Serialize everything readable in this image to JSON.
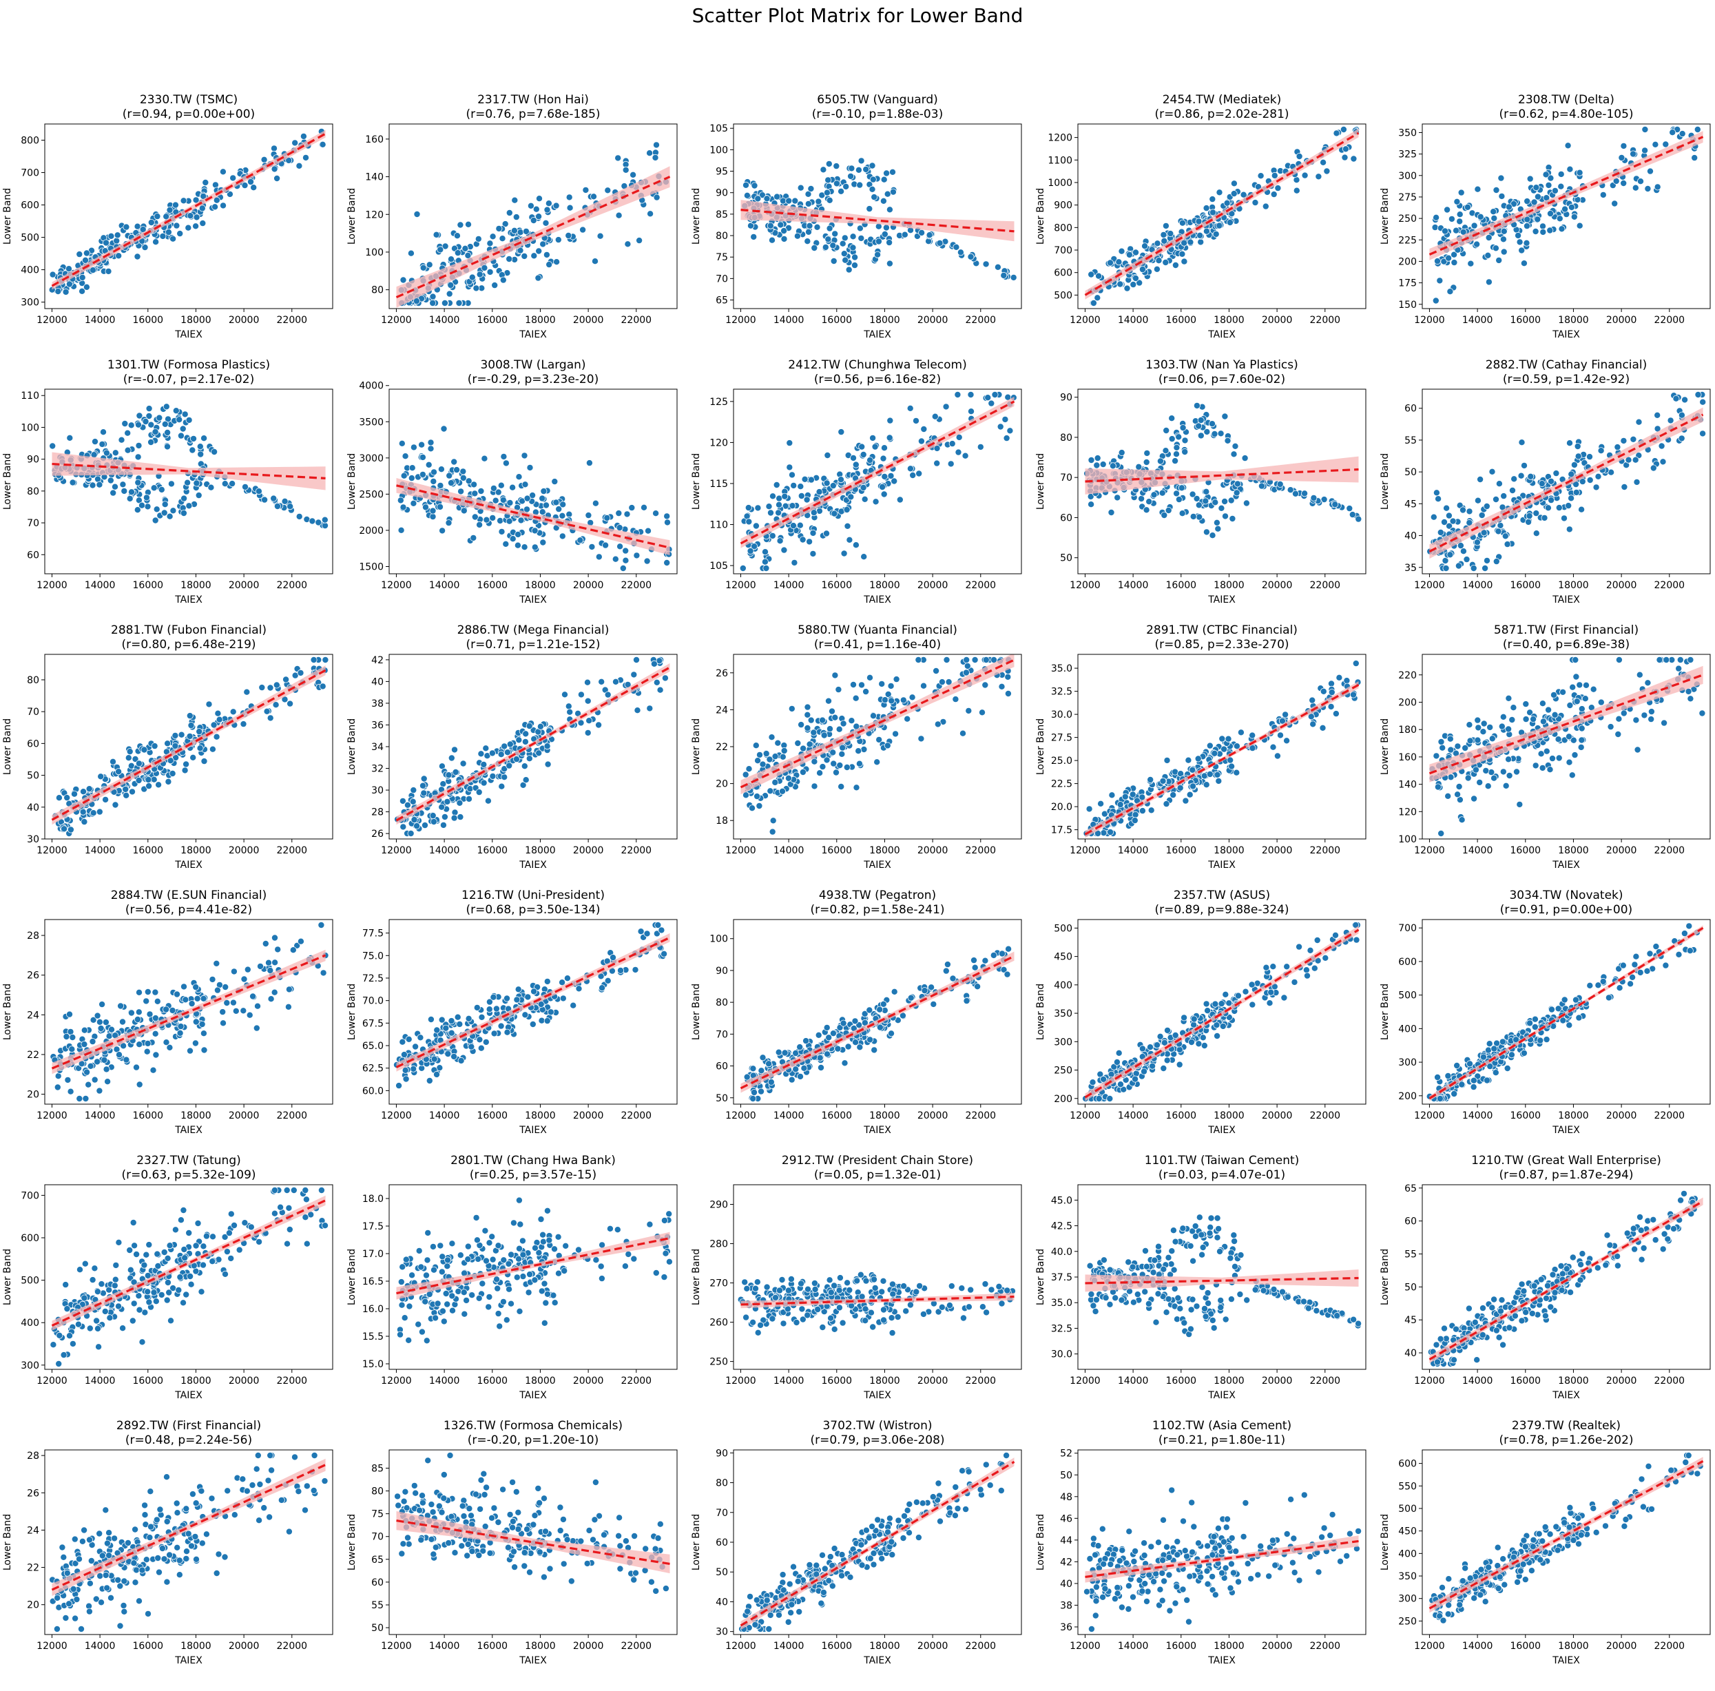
{
  "figure": {
    "title": "Scatter Plot Matrix for Lower Band"
  },
  "chart_data": [
    {
      "type": "scatter",
      "name": "2330.TW (TSMC)",
      "stats": "(r=0.94, p=0.00e+00)",
      "xlabel": "TAIEX",
      "ylabel": "Lower Band",
      "xlim": [
        11700,
        23700
      ],
      "ylim": [
        280,
        850
      ],
      "yticks": [
        300,
        400,
        500,
        600,
        700,
        800
      ],
      "fit": [
        [
          12000,
          350
        ],
        [
          23400,
          820
        ]
      ],
      "ci": [
        8,
        12
      ],
      "shape": "pos",
      "spread": 0.09
    },
    {
      "type": "scatter",
      "name": "2317.TW (Hon Hai)",
      "stats": "(r=0.76, p=7.68e-185)",
      "xlabel": "TAIEX",
      "ylabel": "Lower Band",
      "xlim": [
        11700,
        23700
      ],
      "ylim": [
        70,
        168
      ],
      "yticks": [
        80,
        100,
        120,
        140,
        160
      ],
      "fit": [
        [
          12000,
          76
        ],
        [
          23400,
          140
        ]
      ],
      "ci": [
        2,
        6
      ],
      "shape": "mixed",
      "spread": 0.12
    },
    {
      "type": "scatter",
      "name": "6505.TW (Vanguard)",
      "stats": "(r=-0.10, p=1.88e-03)",
      "xlabel": "TAIEX",
      "ylabel": "Lower Band",
      "xlim": [
        11700,
        23700
      ],
      "ylim": [
        63,
        106
      ],
      "yticks": [
        65,
        70,
        75,
        80,
        85,
        90,
        95,
        100,
        105
      ],
      "fit": [
        [
          12000,
          86
        ],
        [
          23400,
          81
        ]
      ],
      "ci": [
        0.8,
        2.5
      ],
      "shape": "hump",
      "spread": 0.12
    },
    {
      "type": "scatter",
      "name": "2454.TW (Mediatek)",
      "stats": "(r=0.86, p=2.02e-281)",
      "xlabel": "TAIEX",
      "ylabel": "Lower Band",
      "xlim": [
        11700,
        23700
      ],
      "ylim": [
        440,
        1260
      ],
      "yticks": [
        500,
        600,
        700,
        800,
        900,
        1000,
        1100,
        1200
      ],
      "fit": [
        [
          12000,
          500
        ],
        [
          23400,
          1220
        ]
      ],
      "ci": [
        12,
        20
      ],
      "shape": "pos",
      "spread": 0.1
    },
    {
      "type": "scatter",
      "name": "2308.TW (Delta)",
      "stats": "(r=0.62, p=4.80e-105)",
      "xlabel": "TAIEX",
      "ylabel": "Lower Band",
      "xlim": [
        11700,
        23700
      ],
      "ylim": [
        145,
        360
      ],
      "yticks": [
        150,
        175,
        200,
        225,
        250,
        275,
        300,
        325,
        350
      ],
      "fit": [
        [
          12000,
          208
        ],
        [
          23400,
          345
        ]
      ],
      "ci": [
        4,
        7
      ],
      "shape": "mixed",
      "spread": 0.13
    },
    {
      "type": "scatter",
      "name": "1301.TW (Formosa Plastics)",
      "stats": "(r=-0.07, p=2.17e-02)",
      "xlabel": "TAIEX",
      "ylabel": "Lower Band",
      "xlim": [
        11700,
        23700
      ],
      "ylim": [
        54,
        112
      ],
      "yticks": [
        60,
        70,
        80,
        90,
        100,
        110
      ],
      "fit": [
        [
          12000,
          88.5
        ],
        [
          23400,
          84
        ]
      ],
      "ci": [
        1,
        4
      ],
      "shape": "hump",
      "spread": 0.12
    },
    {
      "type": "scatter",
      "name": "3008.TW (Largan)",
      "stats": "(r=-0.29, p=3.23e-20)",
      "xlabel": "TAIEX",
      "ylabel": "Lower Band",
      "xlim": [
        11700,
        23700
      ],
      "ylim": [
        1400,
        3950
      ],
      "yticks": [
        1500,
        2000,
        2500,
        3000,
        3500,
        4000
      ],
      "fit": [
        [
          12000,
          2620
        ],
        [
          23400,
          1760
        ]
      ],
      "ci": [
        40,
        110
      ],
      "shape": "neg",
      "spread": 0.15
    },
    {
      "type": "scatter",
      "name": "2412.TW (Chunghwa Telecom)",
      "stats": "(r=0.56, p=6.16e-82)",
      "xlabel": "TAIEX",
      "ylabel": "Lower Band",
      "xlim": [
        11700,
        23700
      ],
      "ylim": [
        104,
        126.5
      ],
      "yticks": [
        105,
        110,
        115,
        120,
        125
      ],
      "fit": [
        [
          12000,
          107.7
        ],
        [
          23400,
          125
        ]
      ],
      "ci": [
        0.4,
        0.6
      ],
      "shape": "mixed",
      "spread": 0.14
    },
    {
      "type": "scatter",
      "name": "1303.TW (Nan Ya Plastics)",
      "stats": "(r=0.06, p=7.60e-02)",
      "xlabel": "TAIEX",
      "ylabel": "Lower Band",
      "xlim": [
        11700,
        23700
      ],
      "ylim": [
        46,
        92
      ],
      "yticks": [
        50,
        60,
        70,
        80,
        90
      ],
      "fit": [
        [
          12000,
          69
        ],
        [
          23400,
          72
        ]
      ],
      "ci": [
        1,
        3.5
      ],
      "shape": "hump",
      "spread": 0.12
    },
    {
      "type": "scatter",
      "name": "2882.TW (Cathay Financial)",
      "stats": "(r=0.59, p=1.42e-92)",
      "xlabel": "TAIEX",
      "ylabel": "Lower Band",
      "xlim": [
        11700,
        23700
      ],
      "ylim": [
        34,
        63
      ],
      "yticks": [
        35,
        40,
        45,
        50,
        55,
        60
      ],
      "fit": [
        [
          12000,
          37.5
        ],
        [
          23400,
          59
        ]
      ],
      "ci": [
        0.5,
        1.2
      ],
      "shape": "mixed",
      "spread": 0.14
    },
    {
      "type": "scatter",
      "name": "2881.TW (Fubon Financial)",
      "stats": "(r=0.80, p=6.48e-219)",
      "xlabel": "TAIEX",
      "ylabel": "Lower Band",
      "xlim": [
        11700,
        23700
      ],
      "ylim": [
        30,
        88
      ],
      "yticks": [
        30,
        40,
        50,
        60,
        70,
        80
      ],
      "fit": [
        [
          12000,
          36
        ],
        [
          23400,
          83
        ]
      ],
      "ci": [
        0.8,
        1.6
      ],
      "shape": "pos",
      "spread": 0.12
    },
    {
      "type": "scatter",
      "name": "2886.TW (Mega Financial)",
      "stats": "(r=0.71, p=1.21e-152)",
      "xlabel": "TAIEX",
      "ylabel": "Lower Band",
      "xlim": [
        11700,
        23700
      ],
      "ylim": [
        25.5,
        42.5
      ],
      "yticks": [
        26,
        28,
        30,
        32,
        34,
        36,
        38,
        40,
        42
      ],
      "fit": [
        [
          12000,
          27.2
        ],
        [
          23400,
          41.3
        ]
      ],
      "ci": [
        0.2,
        0.4
      ],
      "shape": "pos",
      "spread": 0.14
    },
    {
      "type": "scatter",
      "name": "5880.TW (Yuanta Financial)",
      "stats": "(r=0.41, p=1.16e-40)",
      "xlabel": "TAIEX",
      "ylabel": "Lower Band",
      "xlim": [
        11700,
        23700
      ],
      "ylim": [
        17,
        27
      ],
      "yticks": [
        18,
        20,
        22,
        24,
        26
      ],
      "fit": [
        [
          12000,
          19.8
        ],
        [
          23400,
          26.7
        ]
      ],
      "ci": [
        0.2,
        0.4
      ],
      "shape": "mixed",
      "spread": 0.16
    },
    {
      "type": "scatter",
      "name": "2891.TW (CTBC Financial)",
      "stats": "(r=0.85, p=2.33e-270)",
      "xlabel": "TAIEX",
      "ylabel": "Lower Band",
      "xlim": [
        11700,
        23700
      ],
      "ylim": [
        16.5,
        36.5
      ],
      "yticks": [
        17.5,
        20.0,
        22.5,
        25.0,
        27.5,
        30.0,
        32.5,
        35.0
      ],
      "fit": [
        [
          12000,
          17
        ],
        [
          23400,
          33.2
        ]
      ],
      "ci": [
        0.2,
        0.4
      ],
      "shape": "pos",
      "spread": 0.1
    },
    {
      "type": "scatter",
      "name": "5871.TW (First Financial)",
      "stats": "(r=0.40, p=6.89e-38)",
      "xlabel": "TAIEX",
      "ylabel": "Lower Band",
      "xlim": [
        11700,
        23700
      ],
      "ylim": [
        100,
        235
      ],
      "yticks": [
        100,
        120,
        140,
        160,
        180,
        200,
        220
      ],
      "fit": [
        [
          12000,
          148
        ],
        [
          23400,
          220
        ]
      ],
      "ci": [
        3,
        7
      ],
      "shape": "mixed",
      "spread": 0.15
    },
    {
      "type": "scatter",
      "name": "2884.TW (E.SUN Financial)",
      "stats": "(r=0.56, p=4.41e-82)",
      "xlabel": "TAIEX",
      "ylabel": "Lower Band",
      "xlim": [
        11700,
        23700
      ],
      "ylim": [
        19.5,
        28.8
      ],
      "yticks": [
        20,
        22,
        24,
        26,
        28
      ],
      "fit": [
        [
          12000,
          21.3
        ],
        [
          23400,
          27
        ]
      ],
      "ci": [
        0.15,
        0.3
      ],
      "shape": "mixed",
      "spread": 0.14
    },
    {
      "type": "scatter",
      "name": "1216.TW (Uni-President)",
      "stats": "(r=0.68, p=3.50e-134)",
      "xlabel": "TAIEX",
      "ylabel": "Lower Band",
      "xlim": [
        11700,
        23700
      ],
      "ylim": [
        58.5,
        79
      ],
      "yticks": [
        60.0,
        62.5,
        65.0,
        67.5,
        70.0,
        72.5,
        75.0,
        77.5
      ],
      "fit": [
        [
          12000,
          62.6
        ],
        [
          23400,
          77
        ]
      ],
      "ci": [
        0.3,
        0.5
      ],
      "shape": "pos",
      "spread": 0.12
    },
    {
      "type": "scatter",
      "name": "4938.TW (Pegatron)",
      "stats": "(r=0.82, p=1.58e-241)",
      "xlabel": "TAIEX",
      "ylabel": "Lower Band",
      "xlim": [
        11700,
        23700
      ],
      "ylim": [
        48,
        106
      ],
      "yticks": [
        50,
        60,
        70,
        80,
        90,
        100
      ],
      "fit": [
        [
          12000,
          53
        ],
        [
          23400,
          94.5
        ]
      ],
      "ci": [
        0.8,
        1.5
      ],
      "shape": "pos",
      "spread": 0.1
    },
    {
      "type": "scatter",
      "name": "2357.TW (ASUS)",
      "stats": "(r=0.89, p=9.88e-324)",
      "xlabel": "TAIEX",
      "ylabel": "Lower Band",
      "xlim": [
        11700,
        23700
      ],
      "ylim": [
        190,
        515
      ],
      "yticks": [
        200,
        250,
        300,
        350,
        400,
        450,
        500
      ],
      "fit": [
        [
          12000,
          202
        ],
        [
          23400,
          497
        ]
      ],
      "ci": [
        4,
        7
      ],
      "shape": "pos",
      "spread": 0.09
    },
    {
      "type": "scatter",
      "name": "3034.TW (Novatek)",
      "stats": "(r=0.91, p=0.00e+00)",
      "xlabel": "TAIEX",
      "ylabel": "Lower Band",
      "xlim": [
        11700,
        23700
      ],
      "ylim": [
        175,
        725
      ],
      "yticks": [
        200,
        300,
        400,
        500,
        600,
        700
      ],
      "fit": [
        [
          12000,
          192
        ],
        [
          23400,
          700
        ]
      ],
      "ci": [
        5,
        8
      ],
      "shape": "pos",
      "spread": 0.08
    },
    {
      "type": "scatter",
      "name": "2327.TW (Tatung)",
      "stats": "(r=0.63, p=5.32e-109)",
      "xlabel": "TAIEX",
      "ylabel": "Lower Band",
      "xlim": [
        11700,
        23700
      ],
      "ylim": [
        290,
        725
      ],
      "yticks": [
        300,
        400,
        500,
        600,
        700
      ],
      "fit": [
        [
          12000,
          393
        ],
        [
          23400,
          688
        ]
      ],
      "ci": [
        6,
        12
      ],
      "shape": "mixed",
      "spread": 0.14
    },
    {
      "type": "scatter",
      "name": "2801.TW (Chang Hwa Bank)",
      "stats": "(r=0.25, p=3.57e-15)",
      "xlabel": "TAIEX",
      "ylabel": "Lower Band",
      "xlim": [
        11700,
        23700
      ],
      "ylim": [
        14.9,
        18.25
      ],
      "yticks": [
        15.0,
        15.5,
        16.0,
        16.5,
        17.0,
        17.5,
        18.0
      ],
      "fit": [
        [
          12000,
          16.28
        ],
        [
          23400,
          17.28
        ]
      ],
      "ci": [
        0.04,
        0.12
      ],
      "shape": "mixed",
      "spread": 0.16
    },
    {
      "type": "scatter",
      "name": "2912.TW (President Chain Store)",
      "stats": "(r=0.05, p=1.32e-01)",
      "xlabel": "TAIEX",
      "ylabel": "Lower Band",
      "xlim": [
        11700,
        23700
      ],
      "ylim": [
        248,
        295
      ],
      "yticks": [
        250,
        260,
        270,
        280,
        290
      ],
      "fit": [
        [
          12000,
          264.5
        ],
        [
          23400,
          266.5
        ]
      ],
      "ci": [
        0.5,
        1
      ],
      "shape": "flat",
      "spread": 0.12
    },
    {
      "type": "scatter",
      "name": "1101.TW (Taiwan Cement)",
      "stats": "(r=0.03, p=4.07e-01)",
      "xlabel": "TAIEX",
      "ylabel": "Lower Band",
      "xlim": [
        11700,
        23700
      ],
      "ylim": [
        28.5,
        46.5
      ],
      "yticks": [
        30.0,
        32.5,
        35.0,
        37.5,
        40.0,
        42.5,
        45.0
      ],
      "fit": [
        [
          12000,
          36.9
        ],
        [
          23400,
          37.4
        ]
      ],
      "ci": [
        0.3,
        0.9
      ],
      "shape": "hump",
      "spread": 0.12
    },
    {
      "type": "scatter",
      "name": "1210.TW (Great Wall Enterprise)",
      "stats": "(r=0.87, p=1.87e-294)",
      "xlabel": "TAIEX",
      "ylabel": "Lower Band",
      "xlim": [
        11700,
        23700
      ],
      "ylim": [
        37.5,
        65.5
      ],
      "yticks": [
        40,
        45,
        50,
        55,
        60,
        65
      ],
      "fit": [
        [
          12000,
          39
        ],
        [
          23400,
          63
        ]
      ],
      "ci": [
        0.3,
        0.6
      ],
      "shape": "pos",
      "spread": 0.1
    },
    {
      "type": "scatter",
      "name": "2892.TW (First Financial)",
      "stats": "(r=0.48, p=2.24e-56)",
      "xlabel": "TAIEX",
      "ylabel": "Lower Band",
      "xlim": [
        11700,
        23700
      ],
      "ylim": [
        18.4,
        28.3
      ],
      "yticks": [
        20,
        22,
        24,
        26,
        28
      ],
      "fit": [
        [
          12000,
          20.8
        ],
        [
          23400,
          27.5
        ]
      ],
      "ci": [
        0.15,
        0.35
      ],
      "shape": "mixed",
      "spread": 0.15
    },
    {
      "type": "scatter",
      "name": "1326.TW (Formosa Chemicals)",
      "stats": "(r=-0.20, p=1.20e-10)",
      "xlabel": "TAIEX",
      "ylabel": "Lower Band",
      "xlim": [
        11700,
        23700
      ],
      "ylim": [
        48.5,
        89
      ],
      "yticks": [
        50,
        55,
        60,
        65,
        70,
        75,
        80,
        85
      ],
      "fit": [
        [
          12000,
          73.5
        ],
        [
          23400,
          64
        ]
      ],
      "ci": [
        0.8,
        2.2
      ],
      "shape": "neg",
      "spread": 0.14
    },
    {
      "type": "scatter",
      "name": "3702.TW (Wistron)",
      "stats": "(r=0.79, p=3.06e-208)",
      "xlabel": "TAIEX",
      "ylabel": "Lower Band",
      "xlim": [
        11700,
        23700
      ],
      "ylim": [
        29,
        91
      ],
      "yticks": [
        30,
        40,
        50,
        60,
        70,
        80,
        90
      ],
      "fit": [
        [
          12000,
          32
        ],
        [
          23400,
          87
        ]
      ],
      "ci": [
        0.8,
        1.5
      ],
      "shape": "pos",
      "spread": 0.11
    },
    {
      "type": "scatter",
      "name": "1102.TW (Asia Cement)",
      "stats": "(r=0.21, p=1.80e-11)",
      "xlabel": "TAIEX",
      "ylabel": "Lower Band",
      "xlim": [
        11700,
        23700
      ],
      "ylim": [
        35.3,
        52.3
      ],
      "yticks": [
        36,
        38,
        40,
        42,
        44,
        46,
        48,
        50,
        52
      ],
      "fit": [
        [
          12000,
          40.6
        ],
        [
          23400,
          43.9
        ]
      ],
      "ci": [
        0.2,
        0.55
      ],
      "shape": "mixed",
      "spread": 0.14
    },
    {
      "type": "scatter",
      "name": "2379.TW (Realtek)",
      "stats": "(r=0.78, p=1.26e-202)",
      "xlabel": "TAIEX",
      "ylabel": "Lower Band",
      "xlim": [
        11700,
        23700
      ],
      "ylim": [
        220,
        630
      ],
      "yticks": [
        250,
        300,
        350,
        400,
        450,
        500,
        550,
        600
      ],
      "fit": [
        [
          12000,
          278
        ],
        [
          23400,
          605
        ]
      ],
      "ci": [
        6,
        10
      ],
      "shape": "pos",
      "spread": 0.1
    }
  ],
  "xticks": [
    12000,
    14000,
    16000,
    18000,
    20000,
    22000
  ],
  "colors": {
    "points": "#1f77b4",
    "edge": "#ffffff",
    "fit": "#e8191c",
    "band": "#f7b6b6"
  }
}
